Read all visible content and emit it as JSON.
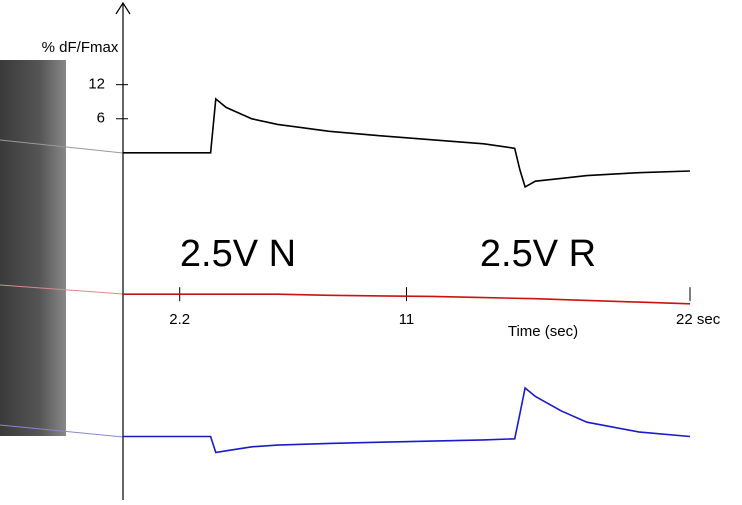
{
  "chart_data": [
    {
      "type": "line",
      "y_label": "% dF/Fmax",
      "annotations": [
        "2.5V N",
        "2.5V R"
      ],
      "xlim": [
        0,
        22
      ],
      "ylim": [
        -12,
        13
      ],
      "yticks": [
        6,
        12
      ],
      "series": [
        {
          "color": "#000000",
          "x": [
            0,
            1,
            2,
            3,
            3.4,
            3.6,
            4,
            5,
            6,
            8,
            10,
            12,
            14,
            15.2,
            15.4,
            15.6,
            16,
            17,
            18,
            20,
            22
          ],
          "values": [
            0,
            0,
            0,
            0,
            0,
            9.5,
            8,
            6,
            5,
            3.8,
            3,
            2.3,
            1.6,
            0.8,
            -3,
            -6,
            -5,
            -4.5,
            -4,
            -3.5,
            -3.2
          ]
        }
      ]
    },
    {
      "type": "line",
      "x_label": "Time (sec)",
      "xlim": [
        0,
        22
      ],
      "ylim": [
        -13,
        12
      ],
      "xticks": [
        2.2,
        11,
        {
          "value": 22,
          "label": "22 sec"
        }
      ],
      "series": [
        {
          "color": "#cc1111",
          "x": [
            0,
            2,
            4,
            6,
            8,
            10,
            12,
            14,
            16,
            18,
            20,
            22
          ],
          "values": [
            0,
            0,
            0,
            0,
            -0.2,
            -0.3,
            -0.4,
            -0.6,
            -0.8,
            -1.1,
            -1.4,
            -1.7
          ]
        }
      ]
    },
    {
      "type": "line",
      "xlim": [
        0,
        22
      ],
      "ylim": [
        -12,
        12
      ],
      "series": [
        {
          "color": "#1a1acc",
          "x": [
            0,
            1,
            2,
            3,
            3.4,
            3.6,
            4,
            5,
            6,
            8,
            10,
            12,
            14,
            15.2,
            15.4,
            15.6,
            16,
            17,
            18,
            20,
            22
          ],
          "values": [
            0,
            0,
            0,
            0,
            0,
            -2.8,
            -2.5,
            -1.8,
            -1.5,
            -1.2,
            -1,
            -0.8,
            -0.6,
            -0.4,
            4,
            8.5,
            7,
            4.5,
            2.5,
            0.8,
            0
          ]
        }
      ]
    }
  ]
}
